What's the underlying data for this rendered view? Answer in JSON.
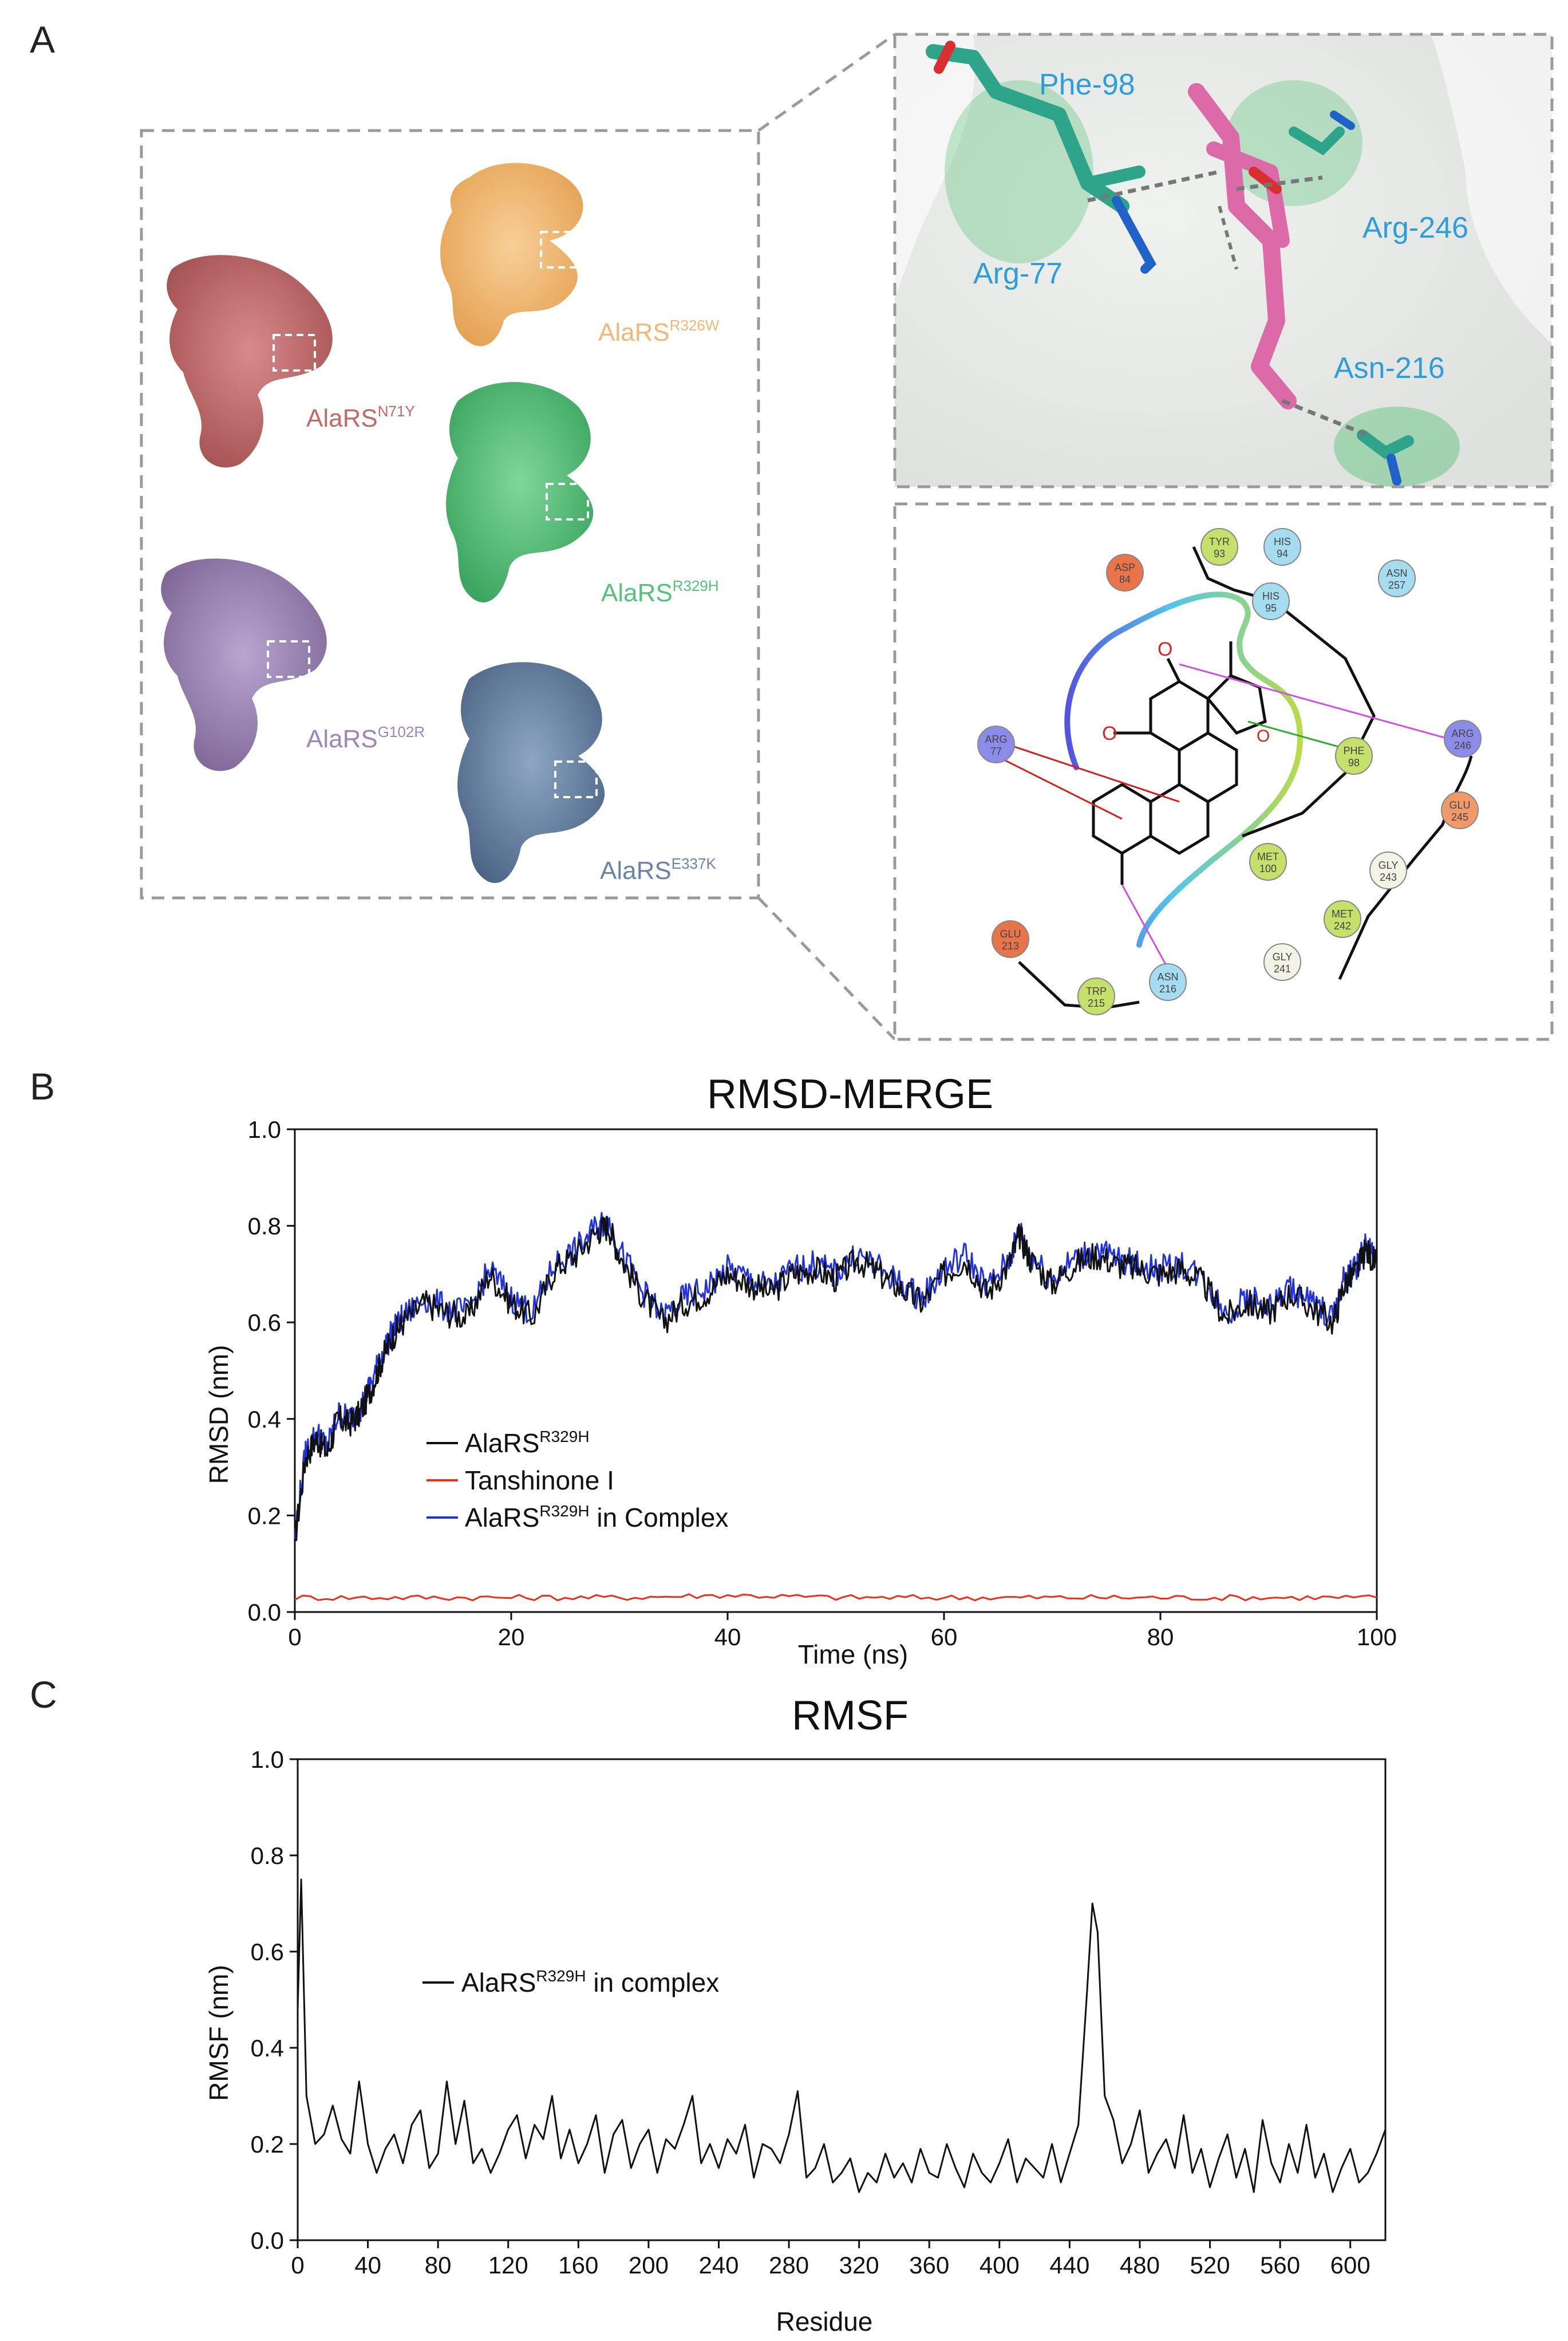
{
  "panels": {
    "a_label": "A",
    "b_label": "B",
    "c_label": "C"
  },
  "structures": [
    {
      "name": "AlaRS",
      "mutation": "R326W",
      "color": "#f2b877"
    },
    {
      "name": "AlaRS",
      "mutation": "N71Y",
      "color": "#c06a6a"
    },
    {
      "name": "AlaRS",
      "mutation": "R329H",
      "color": "#56c17a"
    },
    {
      "name": "AlaRS",
      "mutation": "G102R",
      "color": "#9d86b8"
    },
    {
      "name": "AlaRS",
      "mutation": "E337K",
      "color": "#6a85a8"
    }
  ],
  "docking_3d": {
    "residues": [
      "Phe-98",
      "Arg-246",
      "Arg-77",
      "Asn-216"
    ],
    "label_color": "#2f9ed8"
  },
  "interaction_2d": {
    "residues": [
      {
        "name": "TYR",
        "num": "93",
        "color": "#c5e06b"
      },
      {
        "name": "HIS",
        "num": "94",
        "color": "#a6dcf0"
      },
      {
        "name": "ASP",
        "num": "84",
        "color": "#e8744a"
      },
      {
        "name": "ASN",
        "num": "257",
        "color": "#a6dcf0"
      },
      {
        "name": "HIS",
        "num": "95",
        "color": "#a6dcf0"
      },
      {
        "name": "ARG",
        "num": "77",
        "color": "#8c8ce8"
      },
      {
        "name": "PHE",
        "num": "98",
        "color": "#c5e06b"
      },
      {
        "name": "ARG",
        "num": "246",
        "color": "#8c8ce8"
      },
      {
        "name": "GLU",
        "num": "245",
        "color": "#f09a6a"
      },
      {
        "name": "MET",
        "num": "100",
        "color": "#c5e06b"
      },
      {
        "name": "GLY",
        "num": "243",
        "color": "#f4f4e6"
      },
      {
        "name": "MET",
        "num": "242",
        "color": "#c5e06b"
      },
      {
        "name": "GLY",
        "num": "241",
        "color": "#f4f4e6"
      },
      {
        "name": "GLU",
        "num": "213",
        "color": "#e8744a"
      },
      {
        "name": "TRP",
        "num": "215",
        "color": "#c5e06b"
      },
      {
        "name": "ASN",
        "num": "216",
        "color": "#a6dcf0"
      }
    ],
    "atoms": [
      "O",
      "O",
      "O"
    ]
  },
  "chart_data": [
    {
      "type": "line",
      "title": "RMSD-MERGE",
      "xlabel": "Time (ns)",
      "ylabel": "RMSD (nm)",
      "xlim": [
        0,
        100
      ],
      "ylim": [
        0,
        1.0
      ],
      "xticks": [
        "0",
        "20",
        "40",
        "60",
        "80",
        "100"
      ],
      "yticks": [
        "0.0",
        "0.2",
        "0.4",
        "0.6",
        "0.8",
        "1.0"
      ],
      "legend": [
        {
          "name": "AlaRS",
          "sup": "R329H",
          "suffix": "",
          "color": "#111111"
        },
        {
          "name": "Tanshinone I",
          "sup": "",
          "suffix": "",
          "color": "#e8321e"
        },
        {
          "name": "AlaRS",
          "sup": "R329H",
          "suffix": " in Complex",
          "color": "#2233dd"
        }
      ],
      "series": [
        {
          "name": "AlaRS R329H",
          "color": "#111111",
          "x": [
            0,
            1,
            2,
            3,
            4,
            5,
            6,
            7,
            8,
            9,
            10,
            12,
            14,
            16,
            18,
            20,
            22,
            24,
            26,
            28,
            29,
            30,
            32,
            34,
            36,
            38,
            40,
            42,
            44,
            46,
            48,
            50,
            52,
            54,
            56,
            58,
            60,
            62,
            64,
            66,
            67,
            68,
            70,
            72,
            74,
            76,
            78,
            80,
            82,
            84,
            86,
            88,
            90,
            92,
            94,
            96,
            97,
            98,
            99,
            100
          ],
          "values": [
            0.15,
            0.32,
            0.36,
            0.33,
            0.4,
            0.39,
            0.41,
            0.46,
            0.52,
            0.57,
            0.6,
            0.64,
            0.62,
            0.61,
            0.7,
            0.64,
            0.61,
            0.71,
            0.74,
            0.79,
            0.8,
            0.74,
            0.66,
            0.6,
            0.64,
            0.66,
            0.7,
            0.68,
            0.66,
            0.7,
            0.71,
            0.69,
            0.73,
            0.7,
            0.67,
            0.64,
            0.7,
            0.73,
            0.66,
            0.72,
            0.78,
            0.73,
            0.68,
            0.72,
            0.74,
            0.72,
            0.71,
            0.7,
            0.71,
            0.68,
            0.61,
            0.64,
            0.62,
            0.66,
            0.63,
            0.6,
            0.68,
            0.7,
            0.75,
            0.72
          ]
        },
        {
          "name": "Tanshinone I",
          "color": "#e8321e",
          "x": [
            0,
            10,
            20,
            30,
            40,
            50,
            60,
            70,
            80,
            90,
            100
          ],
          "values": [
            0.03,
            0.03,
            0.03,
            0.03,
            0.035,
            0.03,
            0.03,
            0.03,
            0.03,
            0.03,
            0.03
          ]
        },
        {
          "name": "AlaRS R329H in Complex",
          "color": "#2233dd",
          "x": [
            0,
            1,
            2,
            3,
            4,
            5,
            6,
            7,
            8,
            9,
            10,
            12,
            14,
            16,
            18,
            20,
            22,
            24,
            26,
            28,
            29,
            30,
            32,
            34,
            36,
            38,
            40,
            42,
            44,
            46,
            48,
            50,
            52,
            54,
            56,
            58,
            60,
            62,
            64,
            66,
            67,
            68,
            70,
            72,
            74,
            76,
            78,
            80,
            82,
            84,
            86,
            88,
            90,
            92,
            94,
            96,
            97,
            98,
            99,
            100
          ],
          "values": [
            0.16,
            0.33,
            0.37,
            0.34,
            0.41,
            0.4,
            0.42,
            0.47,
            0.53,
            0.58,
            0.61,
            0.65,
            0.63,
            0.62,
            0.71,
            0.65,
            0.62,
            0.72,
            0.75,
            0.8,
            0.81,
            0.75,
            0.67,
            0.61,
            0.65,
            0.67,
            0.71,
            0.69,
            0.67,
            0.71,
            0.72,
            0.7,
            0.74,
            0.71,
            0.68,
            0.65,
            0.71,
            0.74,
            0.67,
            0.73,
            0.79,
            0.74,
            0.69,
            0.73,
            0.75,
            0.73,
            0.72,
            0.71,
            0.72,
            0.69,
            0.62,
            0.65,
            0.63,
            0.67,
            0.64,
            0.61,
            0.69,
            0.71,
            0.76,
            0.73
          ]
        }
      ]
    },
    {
      "type": "line",
      "title": "RMSF",
      "xlabel": "Residue",
      "ylabel": "RMSF (nm)",
      "xlim": [
        0,
        620
      ],
      "ylim": [
        0,
        1.0
      ],
      "xticks": [
        "0",
        "40",
        "80",
        "120",
        "160",
        "200",
        "240",
        "280",
        "320",
        "360",
        "400",
        "440",
        "480",
        "520",
        "560",
        "600"
      ],
      "yticks": [
        "0.0",
        "0.2",
        "0.4",
        "0.6",
        "0.8",
        "1.0"
      ],
      "legend": [
        {
          "name": "AlaRS",
          "sup": "R329H",
          "suffix": " in complex",
          "color": "#111111"
        }
      ],
      "series": [
        {
          "name": "AlaRS R329H in complex",
          "color": "#111111",
          "x": [
            0,
            2,
            5,
            10,
            15,
            20,
            25,
            30,
            35,
            40,
            45,
            50,
            55,
            60,
            65,
            70,
            75,
            80,
            85,
            90,
            95,
            100,
            105,
            110,
            115,
            120,
            125,
            130,
            135,
            140,
            145,
            150,
            155,
            160,
            165,
            170,
            175,
            180,
            185,
            190,
            195,
            200,
            205,
            210,
            215,
            220,
            225,
            230,
            235,
            240,
            245,
            250,
            255,
            260,
            265,
            270,
            275,
            280,
            285,
            290,
            295,
            300,
            305,
            310,
            315,
            320,
            325,
            330,
            335,
            340,
            345,
            350,
            355,
            360,
            365,
            370,
            375,
            380,
            385,
            390,
            395,
            400,
            405,
            410,
            415,
            420,
            425,
            430,
            435,
            440,
            445,
            450,
            453,
            456,
            460,
            465,
            470,
            475,
            480,
            485,
            490,
            495,
            500,
            505,
            510,
            515,
            520,
            525,
            530,
            535,
            540,
            545,
            550,
            555,
            560,
            565,
            570,
            575,
            580,
            585,
            590,
            595,
            600,
            605,
            610,
            615,
            620
          ],
          "values": [
            0.48,
            0.75,
            0.3,
            0.2,
            0.22,
            0.28,
            0.21,
            0.18,
            0.33,
            0.2,
            0.14,
            0.19,
            0.22,
            0.16,
            0.24,
            0.27,
            0.15,
            0.18,
            0.33,
            0.2,
            0.29,
            0.16,
            0.19,
            0.14,
            0.18,
            0.23,
            0.26,
            0.17,
            0.24,
            0.21,
            0.3,
            0.17,
            0.23,
            0.16,
            0.2,
            0.26,
            0.14,
            0.22,
            0.25,
            0.15,
            0.2,
            0.23,
            0.14,
            0.21,
            0.19,
            0.24,
            0.3,
            0.16,
            0.2,
            0.15,
            0.21,
            0.18,
            0.24,
            0.13,
            0.2,
            0.19,
            0.16,
            0.22,
            0.31,
            0.13,
            0.15,
            0.2,
            0.12,
            0.14,
            0.17,
            0.1,
            0.14,
            0.12,
            0.18,
            0.13,
            0.16,
            0.12,
            0.19,
            0.14,
            0.13,
            0.2,
            0.15,
            0.11,
            0.18,
            0.14,
            0.12,
            0.16,
            0.21,
            0.12,
            0.17,
            0.15,
            0.13,
            0.2,
            0.12,
            0.18,
            0.24,
            0.52,
            0.7,
            0.64,
            0.3,
            0.25,
            0.16,
            0.2,
            0.27,
            0.14,
            0.18,
            0.21,
            0.15,
            0.26,
            0.14,
            0.19,
            0.11,
            0.17,
            0.22,
            0.13,
            0.19,
            0.1,
            0.25,
            0.16,
            0.12,
            0.2,
            0.14,
            0.24,
            0.13,
            0.18,
            0.1,
            0.15,
            0.19,
            0.12,
            0.14,
            0.18,
            0.23
          ]
        }
      ]
    }
  ]
}
